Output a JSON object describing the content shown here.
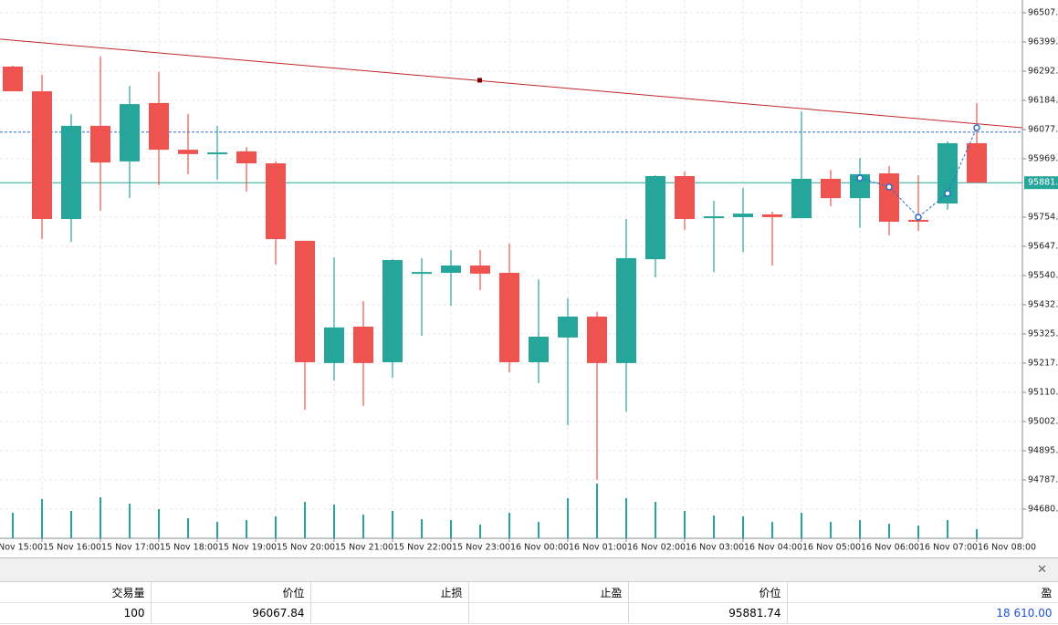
{
  "chart_data": {
    "type": "candlestick",
    "categories": [
      "15 Nov 15:00",
      null,
      "15 Nov 16:00",
      null,
      "15 Nov 17:00",
      null,
      "15 Nov 18:00",
      null,
      "15 Nov 19:00",
      null,
      "15 Nov 20:00",
      null,
      "15 Nov 21:00",
      null,
      "15 Nov 22:00",
      null,
      "15 Nov 23:00",
      null,
      "16 Nov 00:00",
      null,
      "16 Nov 01:00",
      null,
      "16 Nov 02:00",
      null,
      "16 Nov 03:00",
      null,
      "16 Nov 04:00",
      null,
      "16 Nov 05:00",
      null,
      "16 Nov 06:00",
      null,
      "16 Nov 07:00",
      null,
      "16 Nov 08:00"
    ],
    "open": [
      null,
      96309,
      96218,
      95748,
      96091,
      95960,
      96175,
      96003,
      95987,
      95997,
      95953,
      95668,
      95218,
      95352,
      95221,
      95550,
      95550,
      95577,
      95550,
      95221,
      95312,
      95389,
      95218,
      95600,
      95906,
      95751,
      95755,
      95765,
      95751,
      95896,
      95825,
      95916,
      95745,
      95805,
      96027
    ],
    "high": [
      null,
      96312,
      96279,
      96134,
      96346,
      96238,
      96289,
      96134,
      96091,
      96013,
      95960,
      95668,
      95607,
      95446,
      95600,
      95604,
      95634,
      95634,
      95657,
      95526,
      95456,
      95406,
      95748,
      95909,
      95923,
      95815,
      95862,
      95775,
      96144,
      95929,
      95973,
      95943,
      95909,
      96034,
      96175
    ],
    "low": [
      null,
      96218,
      95674,
      95664,
      95778,
      95825,
      95872,
      95913,
      95893,
      95849,
      95580,
      95046,
      95154,
      95060,
      95164,
      95318,
      95429,
      95486,
      95184,
      95144,
      94989,
      94788,
      95039,
      95533,
      95708,
      95553,
      95627,
      95577,
      95751,
      95795,
      95715,
      95688,
      95704,
      95782,
      95882
    ],
    "close": [
      null,
      96218,
      95748,
      96091,
      95956,
      96171,
      96003,
      95987,
      95993,
      95953,
      95674,
      95221,
      95349,
      95218,
      95597,
      95553,
      95577,
      95547,
      95221,
      95315,
      95389,
      95218,
      95604,
      95906,
      95748,
      95758,
      95768,
      95755,
      95896,
      95825,
      95913,
      95738,
      95738,
      96027,
      95882
    ],
    "volumes": [
      null,
      28,
      43,
      30,
      45,
      38,
      32,
      22,
      18,
      20,
      24,
      40,
      37,
      26,
      30,
      21,
      20,
      15,
      28,
      18,
      44,
      60,
      44,
      40,
      30,
      25,
      24,
      18,
      28,
      18,
      20,
      16,
      14,
      20,
      10
    ],
    "up_color": "#26a69a",
    "down_color": "#ef5350",
    "ylim": [
      94573,
      96554
    ],
    "yticks": [
      96507.1,
      96399.6,
      96292.2,
      96184.7,
      96077.3,
      95969.8,
      95754.9,
      95647.5,
      {
        "value": 95540,
        "label": "95540.0"
      },
      95432.6,
      95325.1,
      95217.7,
      95110.2,
      95002.8,
      94895.3,
      94787.9,
      94680.4
    ],
    "grid": true,
    "price_line": {
      "value": 95881.74,
      "label": "95881.7",
      "color": "#26a69a"
    },
    "order_line": {
      "value": 96067.84,
      "color": "#2a6fc9"
    },
    "trendline": {
      "values": [
        96410,
        96084
      ],
      "color": "#c0272d"
    },
    "zigzag": {
      "x": [
        30,
        31,
        32,
        33,
        34
      ],
      "values": [
        95899,
        95866,
        95755,
        95842,
        96084
      ],
      "color": "#2a6fc9"
    }
  },
  "table": {
    "columns": [
      "交易量",
      "价位",
      "止损",
      "止盈",
      "价位",
      "盈"
    ],
    "rows": [
      [
        "100",
        "96067.84",
        null,
        null,
        "95881.74",
        "18 610.00"
      ]
    ]
  }
}
